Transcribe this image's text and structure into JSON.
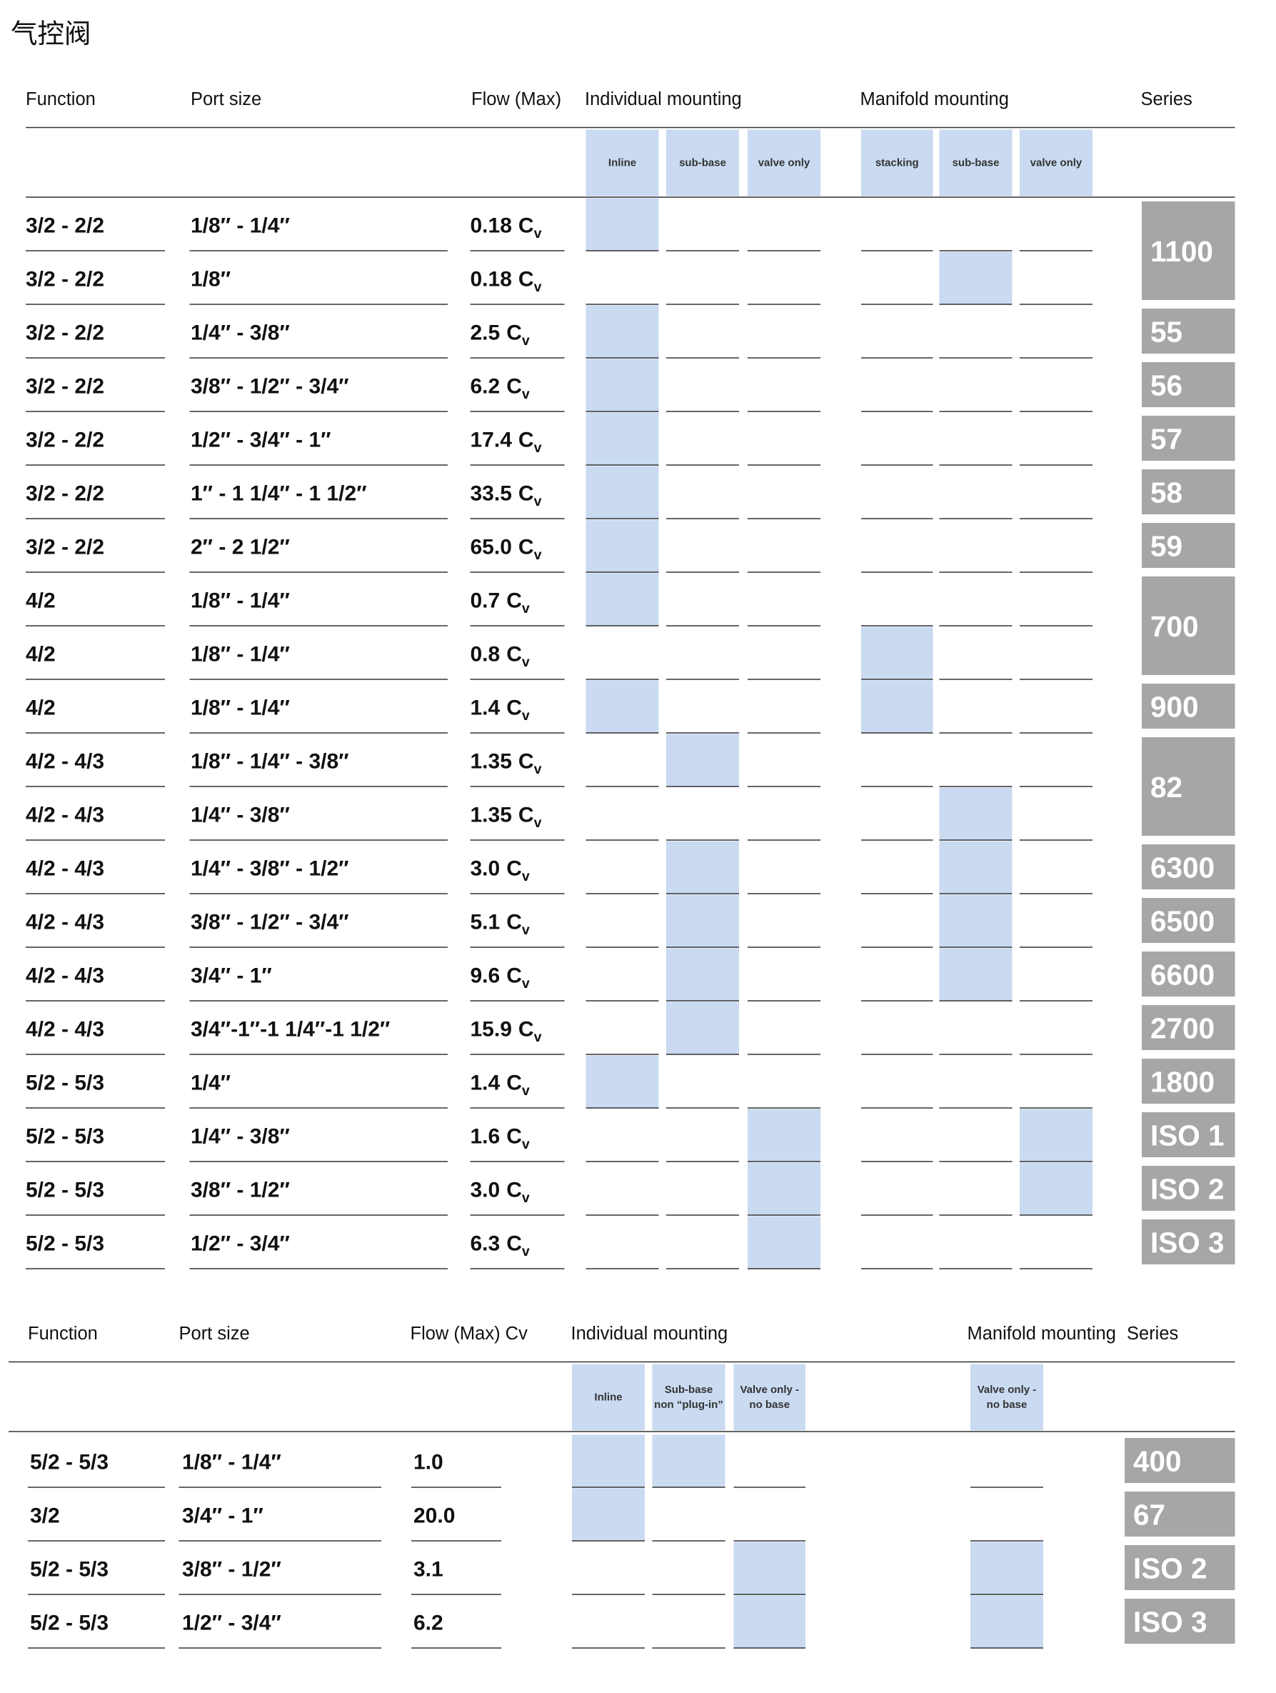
{
  "title": "气控阀",
  "table1": {
    "headers": [
      "Function",
      "Port size",
      "Flow (Max)",
      "Individual mounting",
      "Manifold mounting",
      "Series"
    ],
    "subheaders": [
      [
        "Inline"
      ],
      [
        "sub-base"
      ],
      [
        "valve only"
      ],
      [
        "stacking"
      ],
      [
        "sub-base"
      ],
      [
        "valve only"
      ]
    ],
    "flow_unit": "C",
    "flow_unit_sub": "v",
    "rows": [
      {
        "function": "3/2 - 2/2",
        "port": "1/8″ - 1/4″",
        "flow": "0.18",
        "mount": [
          true,
          false,
          false,
          false,
          false,
          false
        ],
        "series": "1100"
      },
      {
        "function": "3/2 - 2/2",
        "port": "1/8″",
        "flow": "0.18",
        "mount": [
          false,
          false,
          false,
          false,
          true,
          false
        ],
        "series": null
      },
      {
        "function": "3/2 - 2/2",
        "port": "1/4″ - 3/8″",
        "flow": "2.5",
        "mount": [
          true,
          false,
          false,
          false,
          false,
          false
        ],
        "series": "55"
      },
      {
        "function": "3/2 - 2/2",
        "port": "3/8″ - 1/2″ - 3/4″",
        "flow": "6.2",
        "mount": [
          true,
          false,
          false,
          false,
          false,
          false
        ],
        "series": "56"
      },
      {
        "function": "3/2 - 2/2",
        "port": "1/2″ - 3/4″ - 1″",
        "flow": "17.4",
        "mount": [
          true,
          false,
          false,
          false,
          false,
          false
        ],
        "series": "57"
      },
      {
        "function": "3/2 - 2/2",
        "port": "1″ - 1 1/4″ - 1 1/2″",
        "flow": "33.5",
        "mount": [
          true,
          false,
          false,
          false,
          false,
          false
        ],
        "series": "58"
      },
      {
        "function": "3/2 - 2/2",
        "port": "2″ - 2 1/2″",
        "flow": "65.0",
        "mount": [
          true,
          false,
          false,
          false,
          false,
          false
        ],
        "series": "59"
      },
      {
        "function": "4/2",
        "port": "1/8″ - 1/4″",
        "flow": "0.7",
        "mount": [
          true,
          false,
          false,
          false,
          false,
          false
        ],
        "series": "700"
      },
      {
        "function": "4/2",
        "port": "1/8″ - 1/4″",
        "flow": "0.8",
        "mount": [
          false,
          false,
          false,
          true,
          false,
          false
        ],
        "series": null
      },
      {
        "function": "4/2",
        "port": "1/8″ - 1/4″",
        "flow": "1.4",
        "mount": [
          true,
          false,
          false,
          true,
          false,
          false
        ],
        "series": "900"
      },
      {
        "function": "4/2 - 4/3",
        "port": "1/8″ - 1/4″ - 3/8″",
        "flow": "1.35",
        "mount": [
          false,
          true,
          false,
          false,
          false,
          false
        ],
        "series": "82"
      },
      {
        "function": "4/2 - 4/3",
        "port": "1/4″ - 3/8″",
        "flow": "1.35",
        "mount": [
          false,
          false,
          false,
          false,
          true,
          false
        ],
        "series": null
      },
      {
        "function": "4/2 - 4/3",
        "port": "1/4″ - 3/8″ - 1/2″",
        "flow": "3.0",
        "mount": [
          false,
          true,
          false,
          false,
          true,
          false
        ],
        "series": "6300"
      },
      {
        "function": "4/2 - 4/3",
        "port": "3/8″ - 1/2″ - 3/4″",
        "flow": "5.1",
        "mount": [
          false,
          true,
          false,
          false,
          true,
          false
        ],
        "series": "6500"
      },
      {
        "function": "4/2 - 4/3",
        "port": "3/4″ - 1″",
        "flow": "9.6",
        "mount": [
          false,
          true,
          false,
          false,
          true,
          false
        ],
        "series": "6600"
      },
      {
        "function": "4/2 - 4/3",
        "port": "3/4″-1″-1 1/4″-1 1/2″",
        "flow": "15.9",
        "mount": [
          false,
          true,
          false,
          false,
          false,
          false
        ],
        "series": "2700"
      },
      {
        "function": "5/2 - 5/3",
        "port": "1/4″",
        "flow": "1.4",
        "mount": [
          true,
          false,
          false,
          false,
          false,
          false
        ],
        "series": "1800"
      },
      {
        "function": "5/2 - 5/3",
        "port": "1/4″ - 3/8″",
        "flow": "1.6",
        "mount": [
          false,
          false,
          true,
          false,
          false,
          true
        ],
        "series": "ISO 1"
      },
      {
        "function": "5/2 - 5/3",
        "port": "3/8″ - 1/2″",
        "flow": "3.0",
        "mount": [
          false,
          false,
          true,
          false,
          false,
          true
        ],
        "series": "ISO 2"
      },
      {
        "function": "5/2 - 5/3",
        "port": "1/2″ - 3/4″",
        "flow": "6.3",
        "mount": [
          false,
          false,
          true,
          false,
          false,
          false
        ],
        "series": "ISO 3"
      }
    ]
  },
  "table2": {
    "headers": [
      "Function",
      "Port size",
      "Flow (Max) Cv",
      "Individual mounting",
      "Manifold mounting",
      "Series"
    ],
    "subheaders": [
      [
        "Inline"
      ],
      [
        "Sub-base",
        "non “plug-in”"
      ],
      [
        "Valve only -",
        "no base"
      ],
      [
        "Valve only -",
        "no base"
      ]
    ],
    "rows": [
      {
        "function": "5/2 - 5/3",
        "port": "1/8″ - 1/4″",
        "flow": "1.0",
        "mount": [
          true,
          true,
          false,
          false
        ],
        "series": "400"
      },
      {
        "function": "3/2",
        "port": "3/4″ - 1″",
        "flow": "20.0",
        "mount": [
          true,
          false,
          false,
          false
        ],
        "series": "67"
      },
      {
        "function": "5/2 - 5/3",
        "port": "3/8″ - 1/2″",
        "flow": "3.1",
        "mount": [
          false,
          false,
          true,
          true
        ],
        "series": "ISO 2"
      },
      {
        "function": "5/2 - 5/3",
        "port": "1/2″ - 3/4″",
        "flow": "6.2",
        "mount": [
          false,
          false,
          true,
          true
        ],
        "series": "ISO 3"
      }
    ]
  }
}
